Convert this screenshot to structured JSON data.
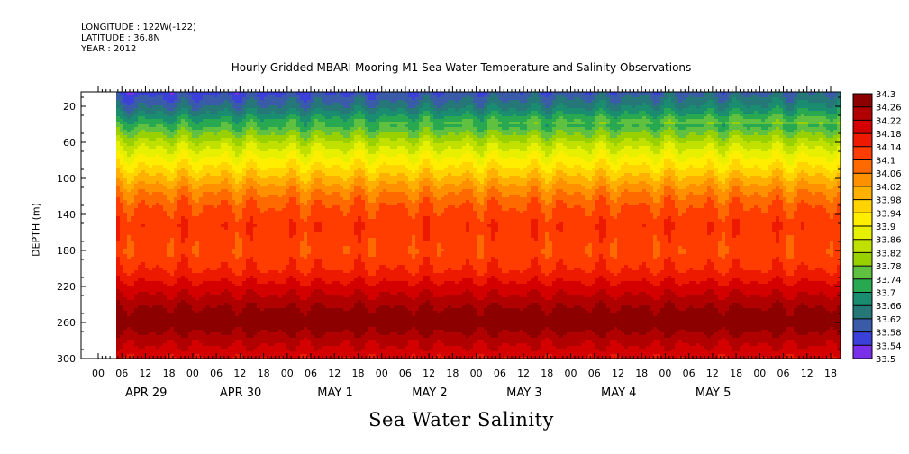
{
  "header": {
    "longitude": "LONGITUDE : 122W(-122)",
    "latitude": "LATITUDE : 36.8N",
    "year": "YEAR : 2012"
  },
  "chart_data": {
    "type": "heatmap",
    "title": "Hourly Gridded MBARI Mooring M1 Sea Water Temperature and Salinity Observations",
    "xlabel": "Sea Water Salinity",
    "ylabel": "DEPTH (m)",
    "ylim": [
      300,
      4
    ],
    "y_ticks": [
      20,
      60,
      100,
      140,
      180,
      220,
      260,
      300
    ],
    "x_hour_ticks": [
      "00",
      "06",
      "12",
      "18",
      "00",
      "06",
      "12",
      "18",
      "00",
      "06",
      "12",
      "18",
      "00",
      "06",
      "12",
      "18",
      "00",
      "06",
      "12",
      "18",
      "00",
      "06",
      "12",
      "18",
      "00",
      "06",
      "12",
      "18",
      "00",
      "06",
      "12",
      "18"
    ],
    "x_date_labels": [
      "APR 29",
      "APR 30",
      "MAY  1",
      "MAY  2",
      "MAY  3",
      "MAY  4",
      "MAY  5"
    ],
    "colorbar_levels": [
      "34.3",
      "34.26",
      "34.22",
      "34.18",
      "34.14",
      "34.1",
      "34.06",
      "34.02",
      "33.98",
      "33.94",
      "33.9",
      "33.86",
      "33.82",
      "33.78",
      "33.74",
      "33.7",
      "33.66",
      "33.62",
      "33.58",
      "33.54",
      "33.5"
    ],
    "colorbar_colors": [
      "#8c0000",
      "#b00000",
      "#d40000",
      "#ee1a00",
      "#ff3d00",
      "#ff6a00",
      "#ff9000",
      "#ffb000",
      "#ffd400",
      "#ffee00",
      "#e6f000",
      "#c0e000",
      "#98d000",
      "#60c040",
      "#28a850",
      "#1a8c70",
      "#267878",
      "#3a5ca8",
      "#3a40d8",
      "#7a30e8",
      "#c000ff"
    ],
    "depth_profile": [
      {
        "depth": 4,
        "value": 33.56
      },
      {
        "depth": 20,
        "value": 33.62
      },
      {
        "depth": 30,
        "value": 33.68
      },
      {
        "depth": 45,
        "value": 33.76
      },
      {
        "depth": 60,
        "value": 33.84
      },
      {
        "depth": 80,
        "value": 33.92
      },
      {
        "depth": 100,
        "value": 34.0
      },
      {
        "depth": 115,
        "value": 34.06
      },
      {
        "depth": 130,
        "value": 34.1
      },
      {
        "depth": 150,
        "value": 34.13
      },
      {
        "depth": 180,
        "value": 34.11
      },
      {
        "depth": 200,
        "value": 34.14
      },
      {
        "depth": 220,
        "value": 34.2
      },
      {
        "depth": 245,
        "value": 34.27
      },
      {
        "depth": 260,
        "value": 34.29
      },
      {
        "depth": 280,
        "value": 34.23
      },
      {
        "depth": 300,
        "value": 34.18
      }
    ],
    "no_data_days": [
      "APR 29 00-06"
    ],
    "grid": false,
    "legend": "right colorbar"
  }
}
